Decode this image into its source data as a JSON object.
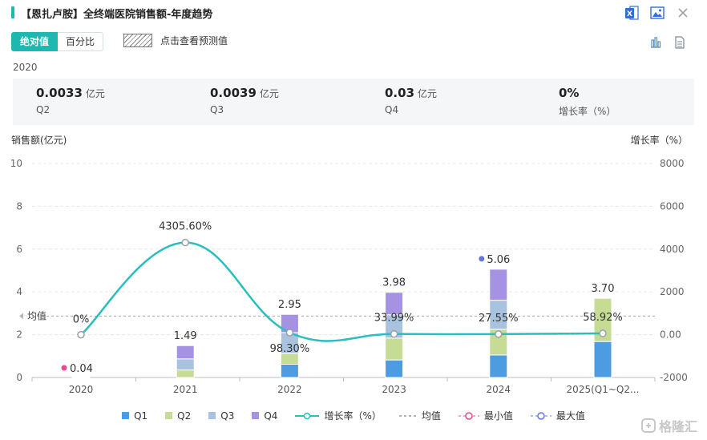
{
  "header": {
    "title": "【恩扎卢胺】全终端医院销售额-年度趋势"
  },
  "icons": {
    "excel": "excel-export-icon",
    "image": "image-export-icon",
    "close": "close-icon",
    "bar_view": "bar-chart-icon",
    "table_view": "table-view-icon"
  },
  "toggle": {
    "absolute_label": "绝对值",
    "percent_label": "百分比"
  },
  "forecast": {
    "label": "点击查看预测值"
  },
  "summary": {
    "year": "2020",
    "items": [
      {
        "value": "0.0033",
        "unit": "亿元",
        "label": "Q2"
      },
      {
        "value": "0.0039",
        "unit": "亿元",
        "label": "Q3"
      },
      {
        "value": "0.03",
        "unit": "亿元",
        "label": "Q4"
      },
      {
        "value": "0%",
        "unit": "",
        "label": "增长率（%）"
      }
    ]
  },
  "colors": {
    "q1": "#4d9be0",
    "q2": "#c6dc95",
    "q3": "#a9c2de",
    "q4": "#a692e2",
    "growth": "#27bfbf",
    "accent": "#1fb8b0",
    "min": "#e64c8d",
    "max": "#6477e0"
  },
  "chart_data": {
    "type": "bar",
    "stacked": true,
    "categories": [
      "2020",
      "2021",
      "2022",
      "2023",
      "2024",
      "2025(Q1~Q2..."
    ],
    "series": [
      {
        "name": "Q1",
        "values": [
          0.0,
          0.0,
          0.62,
          0.82,
          1.05,
          1.68
        ]
      },
      {
        "name": "Q2",
        "values": [
          0.0033,
          0.35,
          0.5,
          1.02,
          1.2,
          2.02
        ]
      },
      {
        "name": "Q3",
        "values": [
          0.0039,
          0.52,
          0.98,
          1.09,
          1.36,
          0.0
        ]
      },
      {
        "name": "Q4",
        "values": [
          0.03,
          0.62,
          0.85,
          1.05,
          1.45,
          0.0
        ]
      }
    ],
    "totals": [
      0.04,
      1.49,
      2.95,
      3.98,
      5.06,
      3.7
    ],
    "total_labels": [
      "0.04",
      "1.49",
      "2.95",
      "3.98",
      "5.06",
      "3.70"
    ],
    "growth": {
      "name": "增长率（%）",
      "values": [
        0,
        4305.6,
        98.3,
        33.99,
        27.55,
        58.92
      ],
      "labels": [
        "0%",
        "4305.60%",
        "98.30%",
        "33.99%",
        "27.55%",
        "58.92%"
      ]
    },
    "mean": {
      "name": "均值",
      "value": 2.87,
      "label": "均值"
    },
    "min": {
      "name": "最小值",
      "index": 0
    },
    "max": {
      "name": "最大值",
      "index": 4
    },
    "y_left": {
      "label": "销售额(亿元)",
      "min": 0,
      "max": 10,
      "ticks": [
        0,
        2,
        4,
        6,
        8,
        10
      ]
    },
    "y_right": {
      "label": "增长率（%）",
      "min": -2000,
      "max": 8000,
      "ticks": [
        "-2000",
        "0.00",
        "2000",
        "4000",
        "6000",
        "8000"
      ],
      "tick_values": [
        -2000,
        0,
        2000,
        4000,
        6000,
        8000
      ]
    },
    "grid": true,
    "legend": [
      "Q1",
      "Q2",
      "Q3",
      "Q4",
      "增长率（%）",
      "均值",
      "最小值",
      "最大值"
    ]
  },
  "watermark": "格隆汇"
}
